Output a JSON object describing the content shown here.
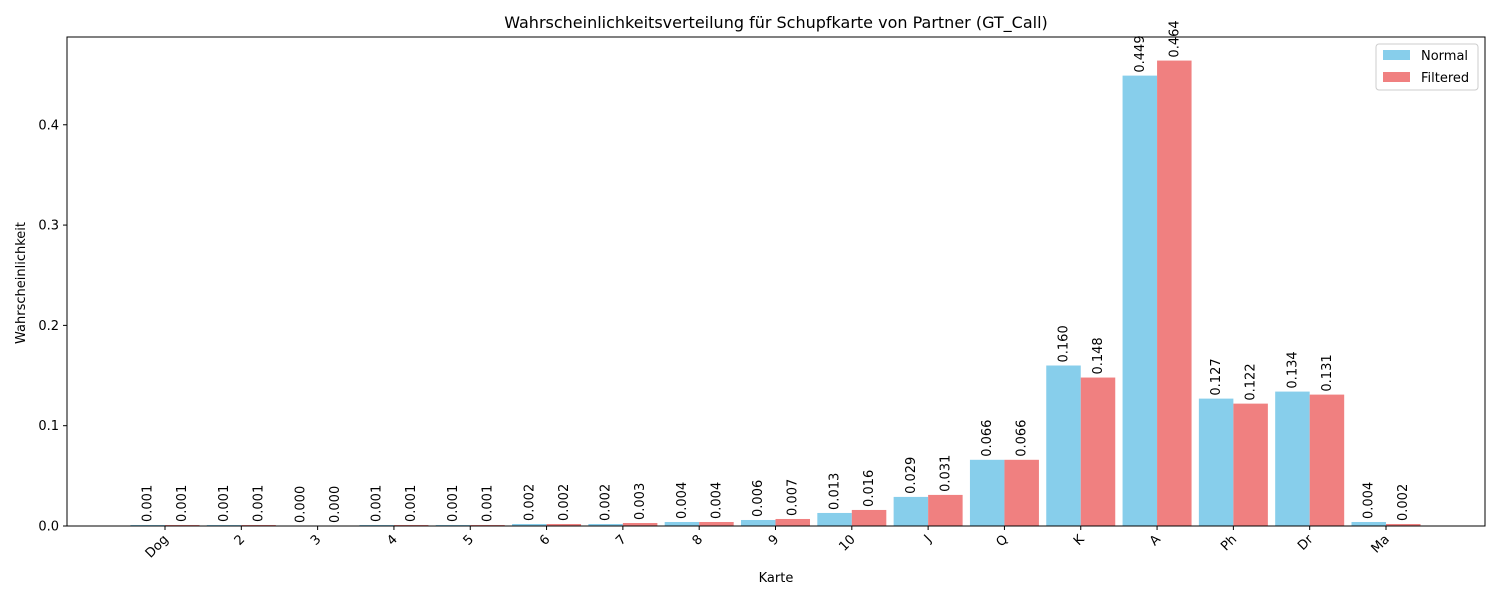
{
  "chart_data": {
    "type": "bar",
    "title": "Wahrscheinlichkeitsverteilung für Schupfkarte von Partner (GT_Call)",
    "xlabel": "Karte",
    "ylabel": "Wahrscheinlichkeit",
    "categories": [
      "Dog",
      "2",
      "3",
      "4",
      "5",
      "6",
      "7",
      "8",
      "9",
      "10",
      "J",
      "Q",
      "K",
      "A",
      "Ph",
      "Dr",
      "Ma"
    ],
    "series": [
      {
        "name": "Normal",
        "color": "#87ceeb",
        "values": [
          0.001,
          0.001,
          0.0,
          0.001,
          0.001,
          0.002,
          0.002,
          0.004,
          0.006,
          0.013,
          0.029,
          0.066,
          0.16,
          0.449,
          0.127,
          0.134,
          0.004
        ],
        "labels": [
          "0.001",
          "0.001",
          "0.000",
          "0.001",
          "0.001",
          "0.002",
          "0.002",
          "0.004",
          "0.006",
          "0.013",
          "0.029",
          "0.066",
          "0.160",
          "0.449",
          "0.127",
          "0.134",
          "0.004"
        ]
      },
      {
        "name": "Filtered",
        "color": "#f08080",
        "values": [
          0.001,
          0.001,
          0.0,
          0.001,
          0.001,
          0.002,
          0.003,
          0.004,
          0.007,
          0.016,
          0.031,
          0.066,
          0.148,
          0.464,
          0.122,
          0.131,
          0.002
        ],
        "labels": [
          "0.001",
          "0.001",
          "0.000",
          "0.001",
          "0.001",
          "0.002",
          "0.003",
          "0.004",
          "0.007",
          "0.016",
          "0.031",
          "0.066",
          "0.148",
          "0.464",
          "0.122",
          "0.131",
          "0.002"
        ]
      }
    ],
    "yticks": [
      "0.0",
      "0.1",
      "0.2",
      "0.3",
      "0.4"
    ],
    "ylim": [
      0,
      0.4875
    ],
    "grid": false,
    "legend_position": "top-right"
  }
}
